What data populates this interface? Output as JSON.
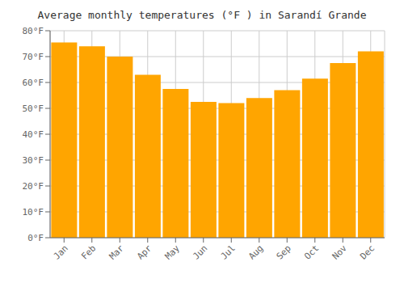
{
  "chart_data": {
    "type": "bar",
    "title": "Average monthly temperatures (°F ) in Sarandí Grande",
    "categories": [
      "Jan",
      "Feb",
      "Mar",
      "Apr",
      "May",
      "Jun",
      "Jul",
      "Aug",
      "Sep",
      "Oct",
      "Nov",
      "Dec"
    ],
    "values": [
      75.5,
      74.0,
      70.0,
      63.0,
      57.5,
      52.5,
      52.0,
      54.0,
      57.0,
      61.5,
      67.5,
      72.0
    ],
    "color": "#FFA500",
    "ylim": [
      0,
      80
    ],
    "yticks": [
      {
        "value": 0,
        "label": "0°F"
      },
      {
        "value": 10,
        "label": "10°F"
      },
      {
        "value": 20,
        "label": "20°F"
      },
      {
        "value": 30,
        "label": "30°F"
      },
      {
        "value": 40,
        "label": "40°F"
      },
      {
        "value": 50,
        "label": "50°F"
      },
      {
        "value": 60,
        "label": "60°F"
      },
      {
        "value": 70,
        "label": "70°F"
      },
      {
        "value": 80,
        "label": "80°F"
      }
    ],
    "grid": true
  }
}
